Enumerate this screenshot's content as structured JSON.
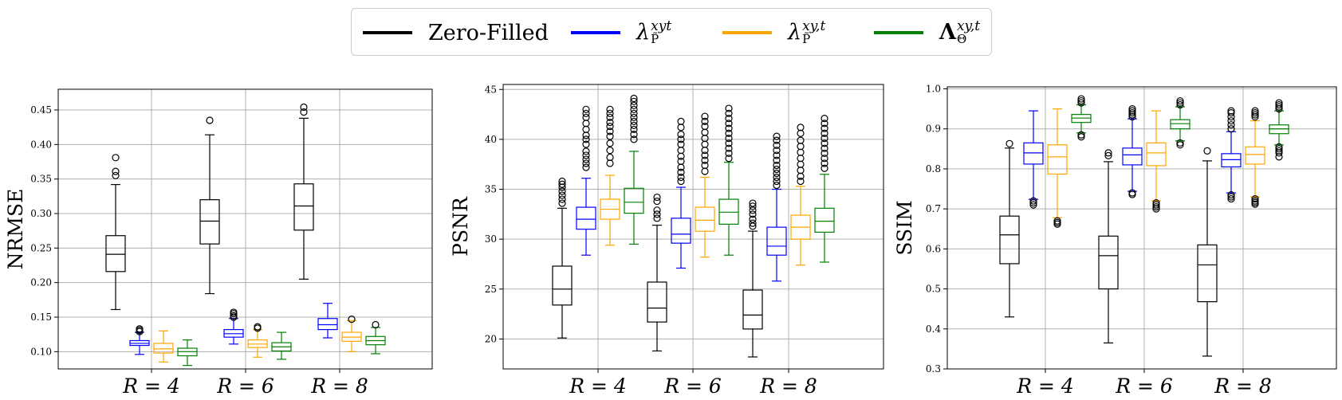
{
  "legend": [
    {
      "label": "Zero-Filled",
      "color": "#000000"
    },
    {
      "label": "λ",
      "sup": "xyt",
      "sub": "P̃",
      "color": "#0000ff"
    },
    {
      "label": "λ",
      "sup": "xy,t",
      "sub": "P̃",
      "color": "#ffa500"
    },
    {
      "label": "Λ",
      "sup": "xy,t",
      "sub": "Θ",
      "color": "#008000"
    }
  ],
  "chart_data": [
    {
      "type": "box",
      "ylabel": "NRMSE",
      "categories": [
        "R = 4",
        "R = 6",
        "R = 8"
      ],
      "ylim": [
        0.075,
        0.48
      ],
      "yticks": [
        "0.10",
        "0.15",
        "0.20",
        "0.25",
        "0.30",
        "0.35",
        "0.40",
        "0.45"
      ],
      "grid": true,
      "series": [
        {
          "name": "Zero-Filled",
          "color": "#000000",
          "boxes": [
            {
              "whislo": 0.161,
              "q1": 0.216,
              "med": 0.241,
              "q3": 0.268,
              "whishi": 0.342,
              "fliers": [
                0.355,
                0.361,
                0.381
              ]
            },
            {
              "whislo": 0.184,
              "q1": 0.256,
              "med": 0.289,
              "q3": 0.32,
              "whishi": 0.414,
              "fliers": [
                0.435
              ]
            },
            {
              "whislo": 0.205,
              "q1": 0.276,
              "med": 0.311,
              "q3": 0.343,
              "whishi": 0.438,
              "fliers": [
                0.447,
                0.454
              ]
            }
          ]
        },
        {
          "name": "λ xyt",
          "color": "#0000ff",
          "boxes": [
            {
              "whislo": 0.096,
              "q1": 0.109,
              "med": 0.112,
              "q3": 0.116,
              "whishi": 0.128,
              "fliers": [
                0.129,
                0.131,
                0.133
              ]
            },
            {
              "whislo": 0.111,
              "q1": 0.121,
              "med": 0.126,
              "q3": 0.132,
              "whishi": 0.148,
              "fliers": [
                0.15,
                0.152,
                0.155,
                0.157
              ]
            },
            {
              "whislo": 0.12,
              "q1": 0.132,
              "med": 0.139,
              "q3": 0.148,
              "whishi": 0.17,
              "fliers": []
            }
          ]
        },
        {
          "name": "λ xy,t",
          "color": "#ffa500",
          "boxes": [
            {
              "whislo": 0.085,
              "q1": 0.098,
              "med": 0.104,
              "q3": 0.112,
              "whishi": 0.13,
              "fliers": []
            },
            {
              "whislo": 0.092,
              "q1": 0.106,
              "med": 0.111,
              "q3": 0.117,
              "whishi": 0.132,
              "fliers": [
                0.134,
                0.136
              ]
            },
            {
              "whislo": 0.1,
              "q1": 0.115,
              "med": 0.121,
              "q3": 0.128,
              "whishi": 0.145,
              "fliers": [
                0.147
              ]
            }
          ]
        },
        {
          "name": "Λ xy,t",
          "color": "#008000",
          "boxes": [
            {
              "whislo": 0.08,
              "q1": 0.094,
              "med": 0.1,
              "q3": 0.105,
              "whishi": 0.117,
              "fliers": []
            },
            {
              "whislo": 0.089,
              "q1": 0.101,
              "med": 0.107,
              "q3": 0.113,
              "whishi": 0.128,
              "fliers": []
            },
            {
              "whislo": 0.097,
              "q1": 0.11,
              "med": 0.116,
              "q3": 0.122,
              "whishi": 0.135,
              "fliers": [
                0.139
              ]
            }
          ]
        }
      ]
    },
    {
      "type": "box",
      "ylabel": "PSNR",
      "categories": [
        "R = 4",
        "R = 6",
        "R = 8"
      ],
      "ylim": [
        17.0,
        45.5
      ],
      "yticks": [
        "20",
        "25",
        "30",
        "35",
        "40",
        "45"
      ],
      "grid": true,
      "series": [
        {
          "name": "Zero-Filled",
          "color": "#000000",
          "boxes": [
            {
              "whislo": 20.1,
              "q1": 23.4,
              "med": 25.0,
              "q3": 27.3,
              "whishi": 33.1,
              "fliers": [
                33.6,
                34.0,
                34.4,
                34.8,
                35.2,
                35.5,
                35.8
              ]
            },
            {
              "whislo": 18.8,
              "q1": 21.7,
              "med": 23.1,
              "q3": 25.7,
              "whishi": 31.4,
              "fliers": [
                32.1,
                32.5,
                32.9,
                33.8,
                34.2
              ]
            },
            {
              "whislo": 18.2,
              "q1": 21.0,
              "med": 22.4,
              "q3": 24.9,
              "whishi": 30.8,
              "fliers": [
                31.3,
                31.6,
                32.0,
                32.5,
                32.9,
                33.3,
                33.6
              ]
            }
          ]
        },
        {
          "name": "λ xyt",
          "color": "#0000ff",
          "boxes": [
            {
              "whislo": 28.4,
              "q1": 31.0,
              "med": 32.0,
              "q3": 33.2,
              "whishi": 36.1,
              "fliers": [
                37.2,
                37.6,
                38.0,
                38.4,
                38.8,
                39.5,
                40.0,
                40.4,
                41.0,
                41.6,
                42.2,
                42.6,
                43.0
              ]
            },
            {
              "whislo": 27.1,
              "q1": 29.6,
              "med": 30.5,
              "q3": 32.1,
              "whishi": 35.2,
              "fliers": [
                35.8,
                36.2,
                36.7,
                37.2,
                37.8,
                38.3,
                38.9,
                39.5,
                40.0,
                40.5,
                41.2,
                41.8
              ]
            },
            {
              "whislo": 25.8,
              "q1": 28.4,
              "med": 29.3,
              "q3": 31.2,
              "whishi": 35.0,
              "fliers": [
                35.4,
                35.8,
                36.2,
                36.6,
                37.0,
                37.4,
                37.9,
                38.4,
                38.9,
                39.4,
                39.9,
                40.3
              ]
            }
          ]
        },
        {
          "name": "λ xy,t",
          "color": "#ffa500",
          "boxes": [
            {
              "whislo": 29.4,
              "q1": 32.0,
              "med": 33.0,
              "q3": 34.0,
              "whishi": 36.4,
              "fliers": [
                37.6,
                38.2,
                38.9,
                39.6,
                40.3,
                40.8,
                41.3,
                41.7,
                42.2,
                42.6,
                43.0
              ]
            },
            {
              "whislo": 28.2,
              "q1": 30.8,
              "med": 31.9,
              "q3": 33.2,
              "whishi": 36.2,
              "fliers": [
                36.8,
                37.4,
                37.9,
                38.4,
                38.9,
                39.5,
                40.1,
                40.7,
                41.3,
                41.8,
                42.3
              ]
            },
            {
              "whislo": 27.4,
              "q1": 30.0,
              "med": 31.2,
              "q3": 32.4,
              "whishi": 35.3,
              "fliers": [
                35.8,
                36.3,
                36.9,
                37.5,
                38.1,
                38.7,
                39.3,
                39.9,
                40.6,
                41.2
              ]
            }
          ]
        },
        {
          "name": "Λ xy,t",
          "color": "#008000",
          "boxes": [
            {
              "whislo": 29.5,
              "q1": 32.6,
              "med": 33.7,
              "q3": 35.1,
              "whishi": 38.8,
              "fliers": [
                40.0,
                40.5,
                41.0,
                41.4,
                41.8,
                42.2,
                42.6,
                43.0,
                43.4,
                43.8,
                44.1
              ]
            },
            {
              "whislo": 28.4,
              "q1": 31.5,
              "med": 32.7,
              "q3": 34.0,
              "whishi": 37.7,
              "fliers": [
                38.1,
                38.6,
                39.1,
                39.6,
                40.1,
                40.6,
                41.1,
                41.6,
                42.1,
                42.6,
                43.1
              ]
            },
            {
              "whislo": 27.7,
              "q1": 30.7,
              "med": 31.8,
              "q3": 33.1,
              "whishi": 36.5,
              "fliers": [
                37.1,
                37.6,
                38.1,
                38.6,
                39.1,
                39.6,
                40.1,
                40.6,
                41.1,
                41.6,
                42.1
              ]
            }
          ]
        }
      ]
    },
    {
      "type": "box",
      "ylabel": "SSIM",
      "categories": [
        "R = 4",
        "R = 6",
        "R = 8"
      ],
      "ylim": [
        0.3,
        1.005
      ],
      "yticks": [
        "0.3",
        "0.4",
        "0.5",
        "0.6",
        "0.7",
        "0.8",
        "0.9",
        "1.0"
      ],
      "grid": true,
      "series": [
        {
          "name": "Zero-Filled",
          "color": "#000000",
          "boxes": [
            {
              "whislo": 0.43,
              "q1": 0.563,
              "med": 0.635,
              "q3": 0.682,
              "whishi": 0.852,
              "fliers": [
                0.863
              ]
            },
            {
              "whislo": 0.365,
              "q1": 0.5,
              "med": 0.583,
              "q3": 0.632,
              "whishi": 0.818,
              "fliers": [
                0.833,
                0.84
              ]
            },
            {
              "whislo": 0.332,
              "q1": 0.468,
              "med": 0.56,
              "q3": 0.61,
              "whishi": 0.82,
              "fliers": [
                0.845
              ]
            }
          ]
        },
        {
          "name": "λ xyt",
          "color": "#0000ff",
          "boxes": [
            {
              "whislo": 0.724,
              "q1": 0.812,
              "med": 0.84,
              "q3": 0.865,
              "whishi": 0.945,
              "fliers": [
                0.71,
                0.715,
                0.72
              ]
            },
            {
              "whislo": 0.744,
              "q1": 0.81,
              "med": 0.835,
              "q3": 0.852,
              "whishi": 0.925,
              "fliers": [
                0.736,
                0.74,
                0.93,
                0.935,
                0.94,
                0.945,
                0.95
              ]
            },
            {
              "whislo": 0.74,
              "q1": 0.805,
              "med": 0.823,
              "q3": 0.838,
              "whishi": 0.893,
              "fliers": [
                0.725,
                0.73,
                0.735,
                0.9,
                0.91,
                0.92,
                0.93,
                0.94,
                0.945
              ]
            }
          ]
        },
        {
          "name": "λ xy,t",
          "color": "#ffa500",
          "boxes": [
            {
              "whislo": 0.678,
              "q1": 0.787,
              "med": 0.83,
              "q3": 0.86,
              "whishi": 0.95,
              "fliers": [
                0.662,
                0.666,
                0.67
              ]
            },
            {
              "whislo": 0.72,
              "q1": 0.808,
              "med": 0.84,
              "q3": 0.865,
              "whishi": 0.945,
              "fliers": [
                0.7,
                0.705,
                0.71,
                0.715
              ]
            },
            {
              "whislo": 0.73,
              "q1": 0.812,
              "med": 0.836,
              "q3": 0.855,
              "whishi": 0.92,
              "fliers": [
                0.712,
                0.716,
                0.72,
                0.725,
                0.93,
                0.935,
                0.94,
                0.945
              ]
            }
          ]
        },
        {
          "name": "Λ xy,t",
          "color": "#008000",
          "boxes": [
            {
              "whislo": 0.89,
              "q1": 0.916,
              "med": 0.927,
              "q3": 0.936,
              "whishi": 0.96,
              "fliers": [
                0.88,
                0.885,
                0.965,
                0.97,
                0.975
              ]
            },
            {
              "whislo": 0.87,
              "q1": 0.9,
              "med": 0.913,
              "q3": 0.923,
              "whishi": 0.955,
              "fliers": [
                0.86,
                0.865,
                0.96,
                0.965,
                0.97
              ]
            },
            {
              "whislo": 0.86,
              "q1": 0.888,
              "med": 0.9,
              "q3": 0.91,
              "whishi": 0.945,
              "fliers": [
                0.83,
                0.84,
                0.845,
                0.85,
                0.855,
                0.95,
                0.955,
                0.96,
                0.965
              ]
            }
          ]
        }
      ]
    }
  ]
}
